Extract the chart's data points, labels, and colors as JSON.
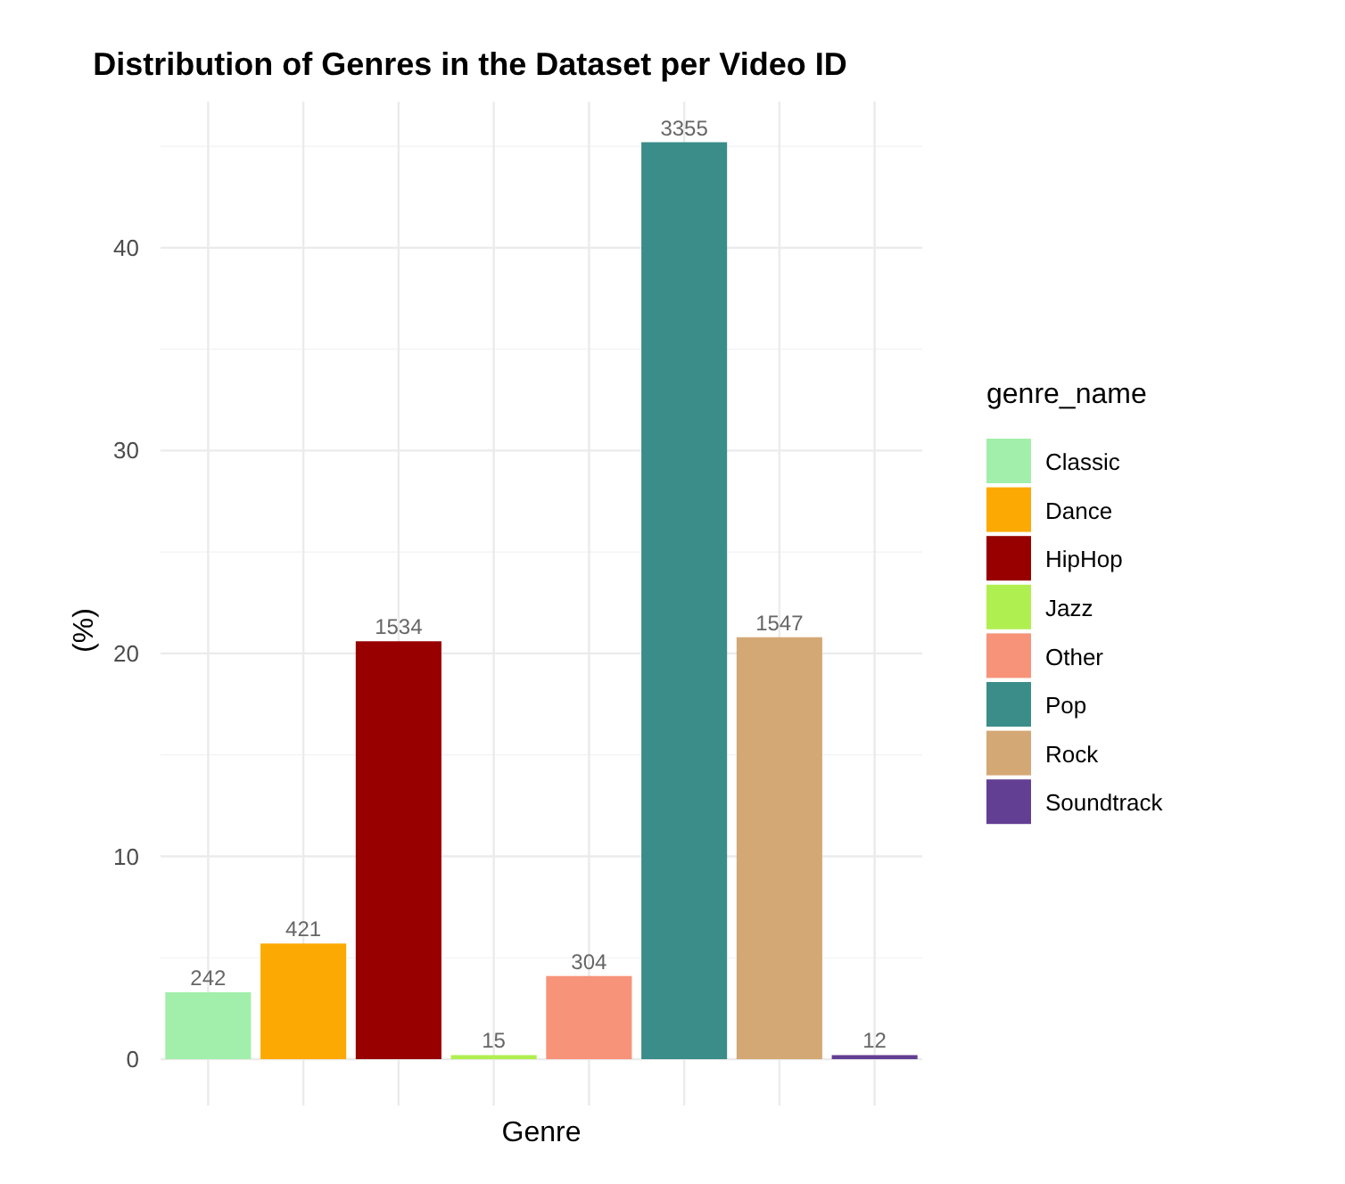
{
  "chart_data": {
    "type": "bar",
    "title": "Distribution of Genres in the Dataset per Video ID",
    "xlabel": "Genre",
    "ylabel": "(%)",
    "legend_title": "genre_name",
    "categories": [
      null,
      null,
      null,
      null,
      null,
      null,
      null,
      null
    ],
    "series": [
      {
        "name": "Classic",
        "color": "#a1efaa",
        "values": [
          3.3,
          null,
          null,
          null,
          null,
          null,
          null,
          null
        ]
      },
      {
        "name": "Dance",
        "color": "#fca903",
        "values": [
          null,
          5.7,
          null,
          null,
          null,
          null,
          null,
          null
        ]
      },
      {
        "name": "HipHop",
        "color": "#980000",
        "values": [
          null,
          null,
          20.6,
          null,
          null,
          null,
          null,
          null
        ]
      },
      {
        "name": "Jazz",
        "color": "#b0ef50",
        "values": [
          null,
          null,
          null,
          0.2,
          null,
          null,
          null,
          null
        ]
      },
      {
        "name": "Other",
        "color": "#f69379",
        "values": [
          null,
          null,
          null,
          null,
          4.1,
          null,
          null,
          null
        ]
      },
      {
        "name": "Pop",
        "color": "#3a8d89",
        "values": [
          null,
          null,
          null,
          null,
          null,
          45.2,
          null,
          null
        ]
      },
      {
        "name": "Rock",
        "color": "#d4a874",
        "values": [
          null,
          null,
          null,
          null,
          null,
          null,
          20.8,
          null
        ]
      },
      {
        "name": "Soundtrack",
        "color": "#633f93",
        "values": [
          null,
          null,
          null,
          null,
          null,
          null,
          null,
          0.2
        ]
      }
    ],
    "annotations": [
      {
        "text": "242",
        "y": 3.3
      },
      {
        "text": "421",
        "y": 5.7
      },
      {
        "text": "1534",
        "y": 20.6
      },
      {
        "text": "15",
        "y": 0.2
      },
      {
        "text": "304",
        "y": 4.1
      },
      {
        "text": "3355",
        "y": 45.2
      },
      {
        "text": "1547",
        "y": 20.8
      },
      {
        "text": "12",
        "y": 0.2
      }
    ],
    "ylim": [
      0,
      47.2
    ],
    "yticks": [
      0,
      10,
      20,
      30,
      40
    ],
    "grid": true,
    "legend": "right"
  }
}
